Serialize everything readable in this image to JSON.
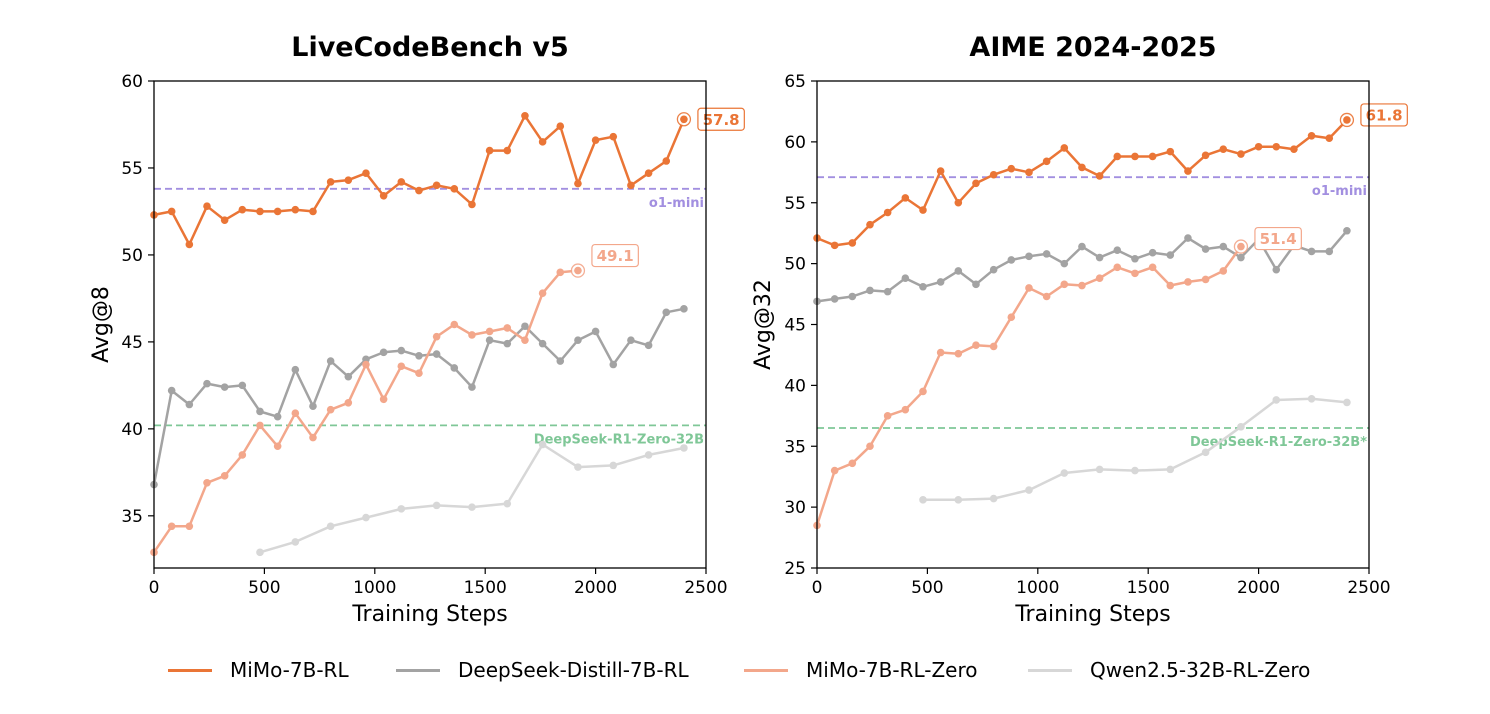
{
  "chart_data": [
    {
      "type": "line",
      "title": "LiveCodeBench v5",
      "xlabel": "Training Steps",
      "ylabel": "Avg@8",
      "xlim": [
        0,
        2500
      ],
      "ylim": [
        32,
        60
      ],
      "xticks": [
        0,
        500,
        1000,
        1500,
        2000,
        2500
      ],
      "yticks": [
        35,
        40,
        45,
        50,
        55,
        60
      ],
      "grid": false,
      "reference_lines": [
        {
          "name": "o1-mini",
          "y": 53.8,
          "color": "#a28fe0"
        },
        {
          "name": "DeepSeek-R1-Zero-32B",
          "y": 40.2,
          "color": "#7fc797"
        }
      ],
      "series": [
        {
          "name": "MiMo-7B-RL",
          "color": "#ea7536",
          "final_label": "57.8",
          "x": [
            0,
            80,
            160,
            240,
            320,
            400,
            480,
            560,
            640,
            720,
            800,
            880,
            960,
            1040,
            1120,
            1200,
            1280,
            1360,
            1440,
            1520,
            1600,
            1680,
            1760,
            1840,
            1920,
            2000,
            2080,
            2160,
            2240,
            2320,
            2400
          ],
          "y": [
            52.3,
            52.5,
            50.6,
            52.8,
            52.0,
            52.6,
            52.5,
            52.5,
            52.6,
            52.5,
            54.2,
            54.3,
            54.7,
            53.4,
            54.2,
            53.7,
            54.0,
            53.8,
            52.9,
            56.0,
            56.0,
            58.0,
            56.5,
            57.4,
            54.1,
            56.6,
            56.8,
            54.0,
            54.7,
            55.4,
            57.8
          ]
        },
        {
          "name": "DeepSeek-Distill-7B-RL",
          "color": "#a3a3a3",
          "x": [
            0,
            80,
            160,
            240,
            320,
            400,
            480,
            560,
            640,
            720,
            800,
            880,
            960,
            1040,
            1120,
            1200,
            1280,
            1360,
            1440,
            1520,
            1600,
            1680,
            1760,
            1840,
            1920,
            2000,
            2080,
            2160,
            2240,
            2320,
            2400
          ],
          "y": [
            36.8,
            42.2,
            41.4,
            42.6,
            42.4,
            42.5,
            41.0,
            40.7,
            43.4,
            41.3,
            43.9,
            43.0,
            44.0,
            44.4,
            44.5,
            44.2,
            44.3,
            43.5,
            42.4,
            45.1,
            44.9,
            45.9,
            44.9,
            43.9,
            45.1,
            45.6,
            43.7,
            45.1,
            44.8,
            46.7,
            46.9
          ]
        },
        {
          "name": "MiMo-7B-RL-Zero",
          "color": "#f3a78b",
          "final_label": "49.1",
          "x": [
            0,
            80,
            160,
            240,
            320,
            400,
            480,
            560,
            640,
            720,
            800,
            880,
            960,
            1040,
            1120,
            1200,
            1280,
            1360,
            1440,
            1520,
            1600,
            1680,
            1760,
            1840,
            1920
          ],
          "y": [
            32.9,
            34.4,
            34.4,
            36.9,
            37.3,
            38.5,
            40.2,
            39.0,
            40.9,
            39.5,
            41.1,
            41.5,
            43.7,
            41.7,
            43.6,
            43.2,
            45.3,
            46.0,
            45.4,
            45.6,
            45.8,
            45.1,
            47.8,
            49.0,
            49.1
          ]
        },
        {
          "name": "Qwen2.5-32B-RL-Zero",
          "color": "#d7d7d7",
          "x": [
            480,
            640,
            800,
            960,
            1120,
            1280,
            1440,
            1600,
            1760,
            1920,
            2080,
            2240,
            2400
          ],
          "y": [
            32.9,
            33.5,
            34.4,
            34.9,
            35.4,
            35.6,
            35.5,
            35.7,
            39.1,
            37.8,
            37.9,
            38.5,
            38.9
          ]
        }
      ]
    },
    {
      "type": "line",
      "title": "AIME 2024-2025",
      "xlabel": "Training Steps",
      "ylabel": "Avg@32",
      "xlim": [
        0,
        2500
      ],
      "ylim": [
        25,
        65
      ],
      "xticks": [
        0,
        500,
        1000,
        1500,
        2000,
        2500
      ],
      "yticks": [
        25,
        30,
        35,
        40,
        45,
        50,
        55,
        60,
        65
      ],
      "grid": false,
      "reference_lines": [
        {
          "name": "o1-mini",
          "y": 57.1,
          "color": "#a28fe0"
        },
        {
          "name": "DeepSeek-R1-Zero-32B*",
          "y": 36.5,
          "color": "#7fc797"
        }
      ],
      "series": [
        {
          "name": "MiMo-7B-RL",
          "color": "#ea7536",
          "final_label": "61.8",
          "x": [
            0,
            80,
            160,
            240,
            320,
            400,
            480,
            560,
            640,
            720,
            800,
            880,
            960,
            1040,
            1120,
            1200,
            1280,
            1360,
            1440,
            1520,
            1600,
            1680,
            1760,
            1840,
            1920,
            2000,
            2080,
            2160,
            2240,
            2320,
            2400
          ],
          "y": [
            52.1,
            51.5,
            51.7,
            53.2,
            54.2,
            55.4,
            54.4,
            57.6,
            55.0,
            56.6,
            57.3,
            57.8,
            57.5,
            58.4,
            59.5,
            57.9,
            57.2,
            58.8,
            58.8,
            58.8,
            59.2,
            57.6,
            58.9,
            59.4,
            59.0,
            59.6,
            59.6,
            59.4,
            60.5,
            60.3,
            61.8
          ]
        },
        {
          "name": "DeepSeek-Distill-7B-RL",
          "color": "#a3a3a3",
          "x": [
            0,
            80,
            160,
            240,
            320,
            400,
            480,
            560,
            640,
            720,
            800,
            880,
            960,
            1040,
            1120,
            1200,
            1280,
            1360,
            1440,
            1520,
            1600,
            1680,
            1760,
            1840,
            1920,
            2000,
            2080,
            2160,
            2240,
            2320,
            2400
          ],
          "y": [
            46.9,
            47.1,
            47.3,
            47.8,
            47.7,
            48.8,
            48.1,
            48.5,
            49.4,
            48.3,
            49.5,
            50.3,
            50.6,
            50.8,
            50.0,
            51.4,
            50.5,
            51.1,
            50.4,
            50.9,
            50.7,
            52.1,
            51.2,
            51.4,
            50.5,
            52.0,
            49.5,
            51.5,
            51.0,
            51.0,
            52.7
          ]
        },
        {
          "name": "MiMo-7B-RL-Zero",
          "color": "#f3a78b",
          "final_label": "51.4",
          "x": [
            0,
            80,
            160,
            240,
            320,
            400,
            480,
            560,
            640,
            720,
            800,
            880,
            960,
            1040,
            1120,
            1200,
            1280,
            1360,
            1440,
            1520,
            1600,
            1680,
            1760,
            1840,
            1920
          ],
          "y": [
            28.5,
            33.0,
            33.6,
            35.0,
            37.5,
            38.0,
            39.5,
            42.7,
            42.6,
            43.3,
            43.2,
            45.6,
            48.0,
            47.3,
            48.3,
            48.2,
            48.8,
            49.7,
            49.2,
            49.7,
            48.2,
            48.5,
            48.7,
            49.4,
            51.4
          ]
        },
        {
          "name": "Qwen2.5-32B-RL-Zero",
          "color": "#d7d7d7",
          "x": [
            480,
            640,
            800,
            960,
            1120,
            1280,
            1440,
            1600,
            1760,
            1920,
            2080,
            2240,
            2400
          ],
          "y": [
            30.6,
            30.6,
            30.7,
            31.4,
            32.8,
            33.1,
            33.0,
            33.1,
            34.5,
            36.6,
            38.8,
            38.9,
            38.6
          ]
        }
      ]
    }
  ],
  "legend": {
    "placement": "bottom",
    "items": [
      {
        "label": "MiMo-7B-RL",
        "color": "#ea7536"
      },
      {
        "label": "DeepSeek-Distill-7B-RL",
        "color": "#a3a3a3"
      },
      {
        "label": "MiMo-7B-RL-Zero",
        "color": "#f3a78b"
      },
      {
        "label": "Qwen2.5-32B-RL-Zero",
        "color": "#d7d7d7"
      }
    ]
  }
}
